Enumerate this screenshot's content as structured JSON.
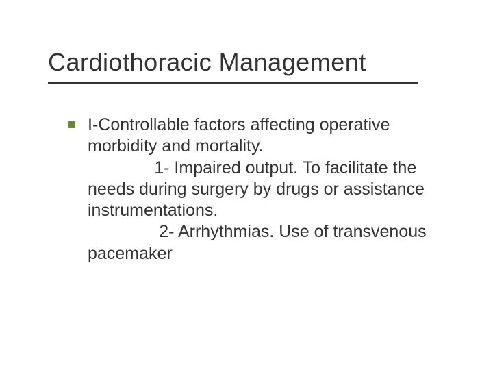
{
  "colors": {
    "bullet": "#6a8a3a",
    "text": "#333333",
    "underline": "#333333",
    "background": "#ffffff"
  },
  "typography": {
    "title_fontsize": 36,
    "body_fontsize": 25,
    "font_family": "Verdana"
  },
  "slide": {
    "title": "Cardiothoracic Management",
    "body": "I-Controllable factors affecting operative morbidity and mortality.\n              1- Impaired output. To facilitate the needs during surgery by drugs or assistance instrumentations.\n               2- Arrhythmias. Use of transvenous pacemaker"
  }
}
